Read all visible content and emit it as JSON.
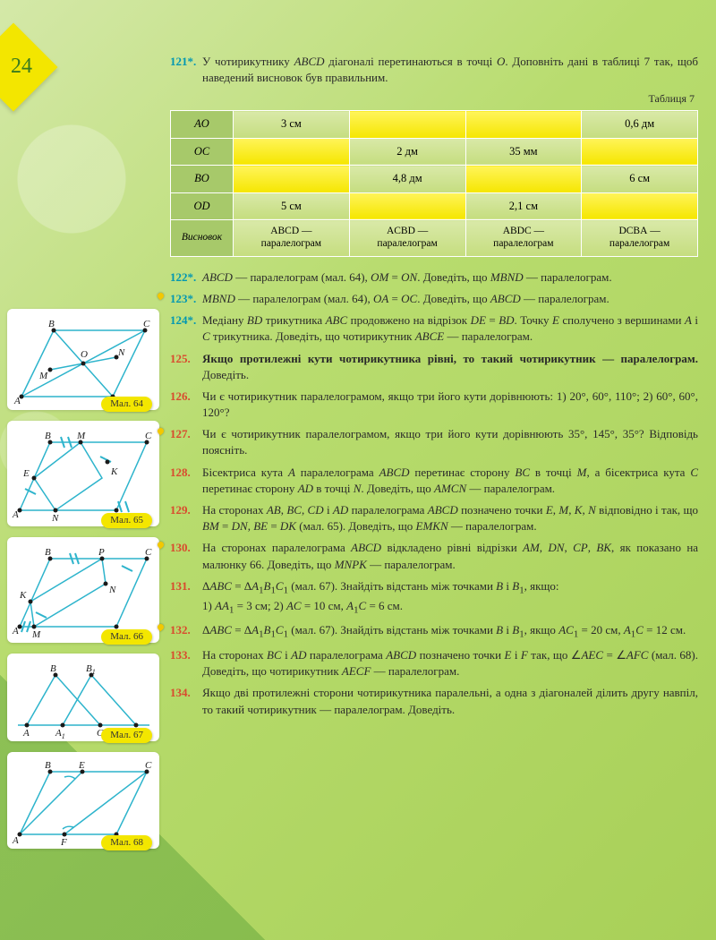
{
  "page_number": "24",
  "table_caption": "Таблиця 7",
  "table": {
    "row_labels": [
      "AO",
      "OC",
      "BO",
      "OD",
      "Висновок"
    ],
    "rows": [
      [
        "3 см",
        "",
        "",
        "0,6 дм"
      ],
      [
        "",
        "2 дм",
        "35 мм",
        ""
      ],
      [
        "",
        "4,8 дм",
        "",
        "6 см"
      ],
      [
        "5 см",
        "",
        "2,1 см",
        ""
      ],
      [
        "ABCD — паралелограм",
        "ACBD — паралелограм",
        "ABDC — паралелограм",
        "DCBA — паралелограм"
      ]
    ],
    "yellow_cells": [
      [
        0,
        1
      ],
      [
        0,
        2
      ],
      [
        1,
        0
      ],
      [
        1,
        3
      ],
      [
        2,
        0
      ],
      [
        2,
        2
      ],
      [
        3,
        1
      ],
      [
        3,
        3
      ]
    ]
  },
  "problems": [
    {
      "n": "121*.",
      "text": "У чотирикутнику <i>ABCD</i> діагоналі перетинаються в точці <i>O</i>. Доповніть дані в таблиці 7 так, щоб наведений висновок був правильним."
    },
    {
      "n": "122*.",
      "text": "<i>ABCD</i> — паралелограм (мал. 64), <i>OM</i> = <i>ON</i>. Доведіть, що <i>MBND</i> — паралелограм."
    },
    {
      "n": "123*.",
      "text": "<i>MBND</i> — паралелограм (мал. 64), <i>OA</i> = <i>OC</i>. Доведіть, що <i>ABCD</i> — паралелограм.",
      "marker": true
    },
    {
      "n": "124*.",
      "text": "Медіану <i>BD</i> трикутника <i>ABC</i> продовжено на відрізок <i>DE</i> = <i>BD</i>. Точку <i>E</i> сполучено з вершинами <i>A</i> і <i>C</i> трикутника. Доведіть, що чотирикутник <i>ABCE</i> — паралелограм."
    },
    {
      "n": "125.",
      "red": true,
      "text": "<span class=\"bold\">Якщо протилежні кути чотирикутника рівні, то такий чотирикутник — паралелограм.</span> Доведіть."
    },
    {
      "n": "126.",
      "red": true,
      "text": "Чи є чотирикутник паралелограмом, якщо три його кути дорівнюють: 1) 20°, 60°, 110°; 2) 60°, 60°, 120°?"
    },
    {
      "n": "127.",
      "red": true,
      "text": "Чи є чотирикутник паралелограмом, якщо три його кути дорівнюють 35°, 145°, 35°? Відповідь поясніть.",
      "marker": true
    },
    {
      "n": "128.",
      "red": true,
      "text": "Бісектриса кута <i>A</i> паралелограма <i>ABCD</i> перетинає сторону <i>BC</i> в точці <i>M</i>, а бісектриса кута <i>C</i> перетинає сторону <i>AD</i> в точці <i>N</i>. Доведіть, що <i>AMCN</i> — паралелограм."
    },
    {
      "n": "129.",
      "red": true,
      "text": "На сторонах <i>AB</i>, <i>BC</i>, <i>CD</i> і <i>AD</i> паралелограма <i>ABCD</i> позначено точки <i>E</i>, <i>M</i>, <i>K</i>, <i>N</i> відповідно і так, що <i>BM</i> = <i>DN</i>, <i>BE</i> = <i>DK</i> (мал. 65). Доведіть, що <i>EMKN</i> — паралелограм."
    },
    {
      "n": "130.",
      "red": true,
      "text": "На сторонах паралелограма <i>ABCD</i> відкладено рівні відрізки <i>AM</i>, <i>DN</i>, <i>CP</i>, <i>BK</i>, як показано на малюнку 66. Доведіть, що <i>MNPK</i> — паралелограм.",
      "marker": true
    },
    {
      "n": "131.",
      "red": true,
      "text": "Δ<i>ABC</i> = Δ<i>A</i><sub>1</sub><i>B</i><sub>1</sub><i>C</i><sub>1</sub> (мал. 67). Знайдіть відстань між точками <i>B</i> і <i>B</i><sub>1</sub>, якщо:<br>1) <i>AA</i><sub>1</sub> = 3 см; 2) <i>AC</i> = 10 см, <i>A</i><sub>1</sub><i>C</i> = 6 см."
    },
    {
      "n": "132.",
      "red": true,
      "text": "Δ<i>ABC</i> = Δ<i>A</i><sub>1</sub><i>B</i><sub>1</sub><i>C</i><sub>1</sub> (мал. 67). Знайдіть відстань між точками <i>B</i> і <i>B</i><sub>1</sub>, якщо <i>AC</i><sub>1</sub> = 20 см, <i>A</i><sub>1</sub><i>C</i> = 12 см.",
      "marker": true
    },
    {
      "n": "133.",
      "red": true,
      "text": "На сторонах <i>BC</i> і <i>AD</i> паралелограма <i>ABCD</i> позначено точки <i>E</i> i <i>F</i> так, що ∠<i>AEC</i> = ∠<i>AFC</i> (мал. 68). Доведіть, що чотирикутник <i>AECF</i> — паралелограм."
    },
    {
      "n": "134.",
      "red": true,
      "text": "Якщо дві протилежні сторони чотирикутника паралельні, а одна з діагоналей ділить другу навпіл, то такий чотирикутник — паралелограм. Доведіть."
    }
  ],
  "fig_labels": [
    "Мал. 64",
    "Мал. 65",
    "Мал. 66",
    "Мал. 67",
    "Мал. 68"
  ],
  "colors": {
    "num_blue": "#0097b2",
    "num_red": "#d94a2e",
    "stroke": "#2db4cc",
    "yellow": "#f3e600"
  }
}
